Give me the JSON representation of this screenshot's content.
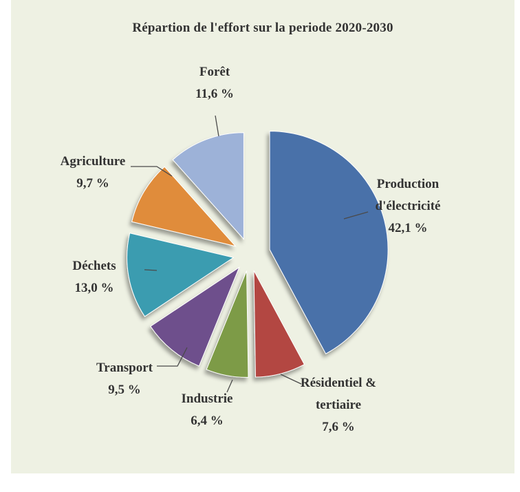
{
  "chart_data": {
    "type": "pie",
    "title": "Répartion de l'effort sur la periode 2020-2030",
    "slices": [
      {
        "label": [
          "Production",
          "d'électricité"
        ],
        "value_label": "42,1 %",
        "value": 42.1,
        "color": "#4a71a9"
      },
      {
        "label": [
          "Résidentiel &",
          "tertiaire"
        ],
        "value_label": "7,6 %",
        "value": 7.6,
        "color": "#b34643"
      },
      {
        "label": [
          "Industrie"
        ],
        "value_label": "6,4 %",
        "value": 6.4,
        "color": "#7d9b47"
      },
      {
        "label": [
          "Transport"
        ],
        "value_label": "9,5 %",
        "value": 9.5,
        "color": "#6e4f8c"
      },
      {
        "label": [
          "Déchets"
        ],
        "value_label": "13,0 %",
        "value": 13.0,
        "color": "#3a9cb0"
      },
      {
        "label": [
          "Agriculture"
        ],
        "value_label": "9,7 %",
        "value": 9.7,
        "color": "#e08c3a"
      },
      {
        "label": [
          "Forêt"
        ],
        "value_label": "11,6 %",
        "value": 11.6,
        "color": "#9db2d8"
      }
    ],
    "legend": "none"
  }
}
